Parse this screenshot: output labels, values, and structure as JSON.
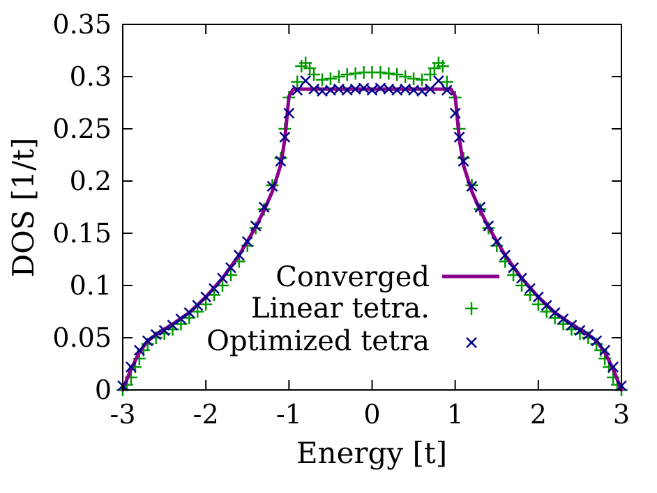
{
  "chart_data": {
    "type": "line",
    "title": "",
    "xlabel": "Energy [t]",
    "ylabel": "DOS [1/t]",
    "xlim": [
      -3,
      3
    ],
    "ylim": [
      0,
      0.35
    ],
    "xticks": [
      -3,
      -2,
      -1,
      0,
      1,
      2,
      3
    ],
    "xtick_labels": [
      "-3",
      "-2",
      "-1",
      "0",
      "1",
      "2",
      "3"
    ],
    "yticks": [
      0,
      0.05,
      0.1,
      0.15,
      0.2,
      0.25,
      0.3,
      0.35
    ],
    "ytick_labels": [
      "0",
      "0.05",
      "0.1",
      "0.15",
      "0.2",
      "0.25",
      "0.3",
      "0.35"
    ],
    "grid": false,
    "legend_position": "center-right",
    "series": [
      {
        "name": "Converged",
        "style": "line",
        "color": "#8b008b",
        "x": [
          -3.0,
          -2.9,
          -2.8,
          -2.7,
          -2.6,
          -2.5,
          -2.4,
          -2.2,
          -2.0,
          -1.8,
          -1.6,
          -1.4,
          -1.3,
          -1.2,
          -1.1,
          -1.05,
          -1.0,
          -0.95,
          -0.5,
          0.0,
          0.5,
          0.95,
          1.0,
          1.05,
          1.1,
          1.2,
          1.3,
          1.4,
          1.6,
          1.8,
          2.0,
          2.2,
          2.4,
          2.5,
          2.6,
          2.7,
          2.8,
          2.9,
          3.0
        ],
        "y": [
          0.0,
          0.02,
          0.036,
          0.047,
          0.053,
          0.058,
          0.063,
          0.074,
          0.089,
          0.107,
          0.129,
          0.156,
          0.172,
          0.19,
          0.215,
          0.24,
          0.281,
          0.288,
          0.288,
          0.288,
          0.288,
          0.288,
          0.281,
          0.24,
          0.215,
          0.19,
          0.172,
          0.156,
          0.129,
          0.107,
          0.089,
          0.074,
          0.063,
          0.058,
          0.053,
          0.047,
          0.036,
          0.02,
          0.0
        ]
      },
      {
        "name": "Linear tetra.",
        "style": "plus",
        "color": "#009900",
        "x": [
          -3.0,
          -2.95,
          -2.9,
          -2.85,
          -2.8,
          -2.75,
          -2.7,
          -2.6,
          -2.5,
          -2.4,
          -2.3,
          -2.2,
          -2.1,
          -2.0,
          -1.9,
          -1.8,
          -1.7,
          -1.6,
          -1.5,
          -1.4,
          -1.3,
          -1.2,
          -1.1,
          -1.05,
          -1.0,
          -0.9,
          -0.85,
          -0.8,
          -0.75,
          -0.7,
          -0.6,
          -0.5,
          -0.4,
          -0.3,
          -0.2,
          -0.1,
          0.0,
          0.1,
          0.2,
          0.3,
          0.4,
          0.5,
          0.6,
          0.7,
          0.75,
          0.8,
          0.85,
          0.9,
          1.0,
          1.05,
          1.1,
          1.2,
          1.3,
          1.4,
          1.5,
          1.6,
          1.7,
          1.8,
          1.9,
          2.0,
          2.1,
          2.2,
          2.3,
          2.4,
          2.5,
          2.6,
          2.7,
          2.75,
          2.8,
          2.85,
          2.9,
          2.95,
          3.0
        ],
        "y": [
          0.0,
          0.005,
          0.012,
          0.022,
          0.03,
          0.038,
          0.044,
          0.05,
          0.054,
          0.058,
          0.063,
          0.069,
          0.075,
          0.082,
          0.091,
          0.1,
          0.11,
          0.123,
          0.138,
          0.155,
          0.173,
          0.196,
          0.222,
          0.25,
          0.28,
          0.295,
          0.31,
          0.313,
          0.308,
          0.302,
          0.297,
          0.298,
          0.3,
          0.302,
          0.303,
          0.304,
          0.304,
          0.304,
          0.303,
          0.302,
          0.3,
          0.298,
          0.297,
          0.302,
          0.308,
          0.313,
          0.31,
          0.295,
          0.28,
          0.25,
          0.222,
          0.196,
          0.173,
          0.155,
          0.138,
          0.123,
          0.11,
          0.1,
          0.091,
          0.082,
          0.075,
          0.069,
          0.063,
          0.058,
          0.054,
          0.05,
          0.044,
          0.038,
          0.03,
          0.022,
          0.012,
          0.005,
          0.0
        ]
      },
      {
        "name": "Optimized tetra",
        "style": "cross",
        "color": "#00008b",
        "x": [
          -3.0,
          -2.9,
          -2.8,
          -2.7,
          -2.6,
          -2.5,
          -2.4,
          -2.3,
          -2.2,
          -2.1,
          -2.0,
          -1.9,
          -1.8,
          -1.7,
          -1.6,
          -1.5,
          -1.4,
          -1.3,
          -1.2,
          -1.1,
          -1.05,
          -1.0,
          -0.9,
          -0.8,
          -0.7,
          -0.6,
          -0.5,
          -0.4,
          -0.3,
          -0.2,
          -0.1,
          0.0,
          0.1,
          0.2,
          0.3,
          0.4,
          0.5,
          0.6,
          0.7,
          0.8,
          0.9,
          1.0,
          1.05,
          1.1,
          1.2,
          1.3,
          1.4,
          1.5,
          1.6,
          1.7,
          1.8,
          1.9,
          2.0,
          2.1,
          2.2,
          2.3,
          2.4,
          2.5,
          2.6,
          2.7,
          2.8,
          2.9,
          3.0
        ],
        "y": [
          0.004,
          0.022,
          0.038,
          0.047,
          0.053,
          0.057,
          0.062,
          0.068,
          0.074,
          0.081,
          0.089,
          0.097,
          0.107,
          0.117,
          0.129,
          0.142,
          0.157,
          0.175,
          0.195,
          0.219,
          0.242,
          0.265,
          0.287,
          0.296,
          0.288,
          0.286,
          0.287,
          0.288,
          0.287,
          0.288,
          0.289,
          0.287,
          0.289,
          0.288,
          0.287,
          0.288,
          0.287,
          0.286,
          0.288,
          0.296,
          0.287,
          0.265,
          0.242,
          0.219,
          0.195,
          0.175,
          0.157,
          0.142,
          0.129,
          0.117,
          0.107,
          0.097,
          0.089,
          0.081,
          0.074,
          0.068,
          0.062,
          0.057,
          0.053,
          0.047,
          0.038,
          0.022,
          0.004
        ]
      }
    ]
  }
}
